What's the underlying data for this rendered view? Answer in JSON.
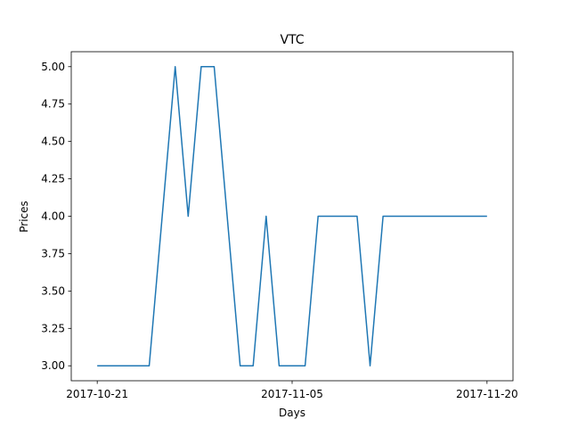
{
  "chart_data": {
    "type": "line",
    "title": "VTC",
    "xlabel": "Days",
    "ylabel": "Prices",
    "x": [
      "2017-10-21",
      "2017-10-22",
      "2017-10-23",
      "2017-10-24",
      "2017-10-25",
      "2017-10-26",
      "2017-10-27",
      "2017-10-28",
      "2017-10-29",
      "2017-10-30",
      "2017-10-31",
      "2017-11-01",
      "2017-11-02",
      "2017-11-03",
      "2017-11-04",
      "2017-11-05",
      "2017-11-06",
      "2017-11-07",
      "2017-11-08",
      "2017-11-09",
      "2017-11-10",
      "2017-11-11",
      "2017-11-12",
      "2017-11-13",
      "2017-11-14",
      "2017-11-15",
      "2017-11-16",
      "2017-11-17",
      "2017-11-18",
      "2017-11-19",
      "2017-11-20"
    ],
    "series": [
      {
        "values": [
          3,
          3,
          3,
          3,
          3,
          4,
          5,
          4,
          5,
          5,
          4,
          3,
          3,
          4,
          3,
          3,
          3,
          4,
          4,
          4,
          4,
          3,
          4,
          4,
          4,
          4,
          4,
          4,
          4,
          4,
          4
        ],
        "color": "#1f77b4"
      }
    ],
    "xticks": [
      "2017-10-21",
      "2017-11-05",
      "2017-11-20"
    ],
    "yticks": [
      "3.00",
      "3.25",
      "3.50",
      "3.75",
      "4.00",
      "4.25",
      "4.50",
      "4.75",
      "5.00"
    ],
    "xlim": [
      "2017-10-19",
      "2017-11-22"
    ],
    "ylim": [
      2.9,
      5.1
    ],
    "grid": false,
    "legend": "none"
  }
}
